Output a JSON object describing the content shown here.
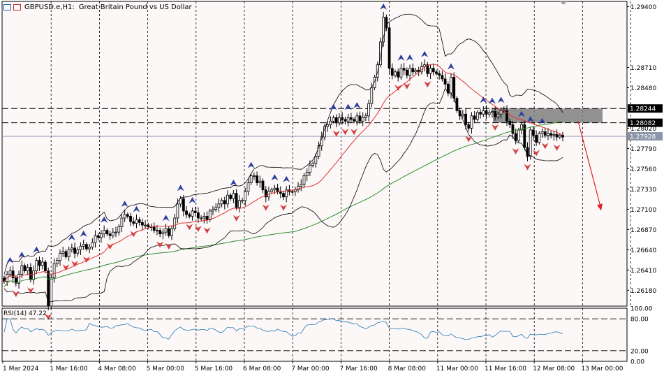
{
  "header": {
    "symbol": "GBPUSD.e,H1:",
    "description": "Great Britain Pound vs US Dollar"
  },
  "colors": {
    "background": "#fdf8f8",
    "candle_up": "#000000",
    "candle_down": "#000000",
    "sma_red": "#e03030",
    "sma_green": "#2e8b2e",
    "bollinger": "#000000",
    "fractal_up": "#2a3f9d",
    "fractal_down": "#d24040",
    "rsi_line": "#1f77b4",
    "zone_fill": "#808080",
    "forecast_arrow": "#e02020"
  },
  "rsi": {
    "label": "RSI(14) 47.22",
    "ticks": [
      "100.00",
      "80.00",
      "20.00",
      "0.00"
    ]
  },
  "chart_data": {
    "type": "candlestick",
    "title": "GBPUSD.e,H1: Great Britain Pound vs US Dollar",
    "price_axis_ticks": [
      "1.29400",
      "1.28710",
      "1.28480",
      "1.28020",
      "1.27790",
      "1.27560",
      "1.27330",
      "1.27100",
      "1.26870",
      "1.26640",
      "1.26410",
      "1.26180"
    ],
    "price_axis_ticks_display": [
      "1.29400",
      "1.28710",
      "1.28480",
      "1.28020",
      "1.27790",
      "1.27560",
      "1.27330",
      "1.27100",
      "1.26870",
      "1.26640",
      "1.26410",
      "1.26180"
    ],
    "price_range": [
      1.26,
      1.2946
    ],
    "time_axis_labels": [
      "1 Mar 2024",
      "1 Mar 16:00",
      "4 Mar 08:00",
      "5 Mar 00:00",
      "5 Mar 16:00",
      "6 Mar 08:00",
      "7 Mar 00:00",
      "7 Mar 16:00",
      "8 Mar 08:00",
      "11 Mar 00:00",
      "11 Mar 16:00",
      "12 Mar 08:00",
      "13 Mar 00:00"
    ],
    "highlight_labels": [
      {
        "price": 1.28244,
        "label": "1.28244",
        "style": "dark"
      },
      {
        "price": 1.28082,
        "label": "1.28082",
        "style": "dark"
      },
      {
        "price": 1.27928,
        "label": "1.27928",
        "style": "grey"
      }
    ],
    "horizontal_levels": [
      1.28244,
      1.28082
    ],
    "current_price": 1.27928,
    "resistance_zone": [
      1.28082,
      1.28244
    ],
    "series_close": [
      1.2628,
      1.2636,
      1.264,
      1.2632,
      1.2626,
      1.2636,
      1.2646,
      1.264,
      1.2644,
      1.263,
      1.264,
      1.2652,
      1.2646,
      1.265,
      1.264,
      1.26,
      1.2632,
      1.2648,
      1.2652,
      1.266,
      1.2662,
      1.2656,
      1.2664,
      1.2666,
      1.266,
      1.2664,
      1.2668,
      1.267,
      1.2665,
      1.2667,
      1.2672,
      1.268,
      1.2678,
      1.2682,
      1.2686,
      1.2682,
      1.268,
      1.2684,
      1.2684,
      1.269,
      1.27,
      1.2704,
      1.2702,
      1.2696,
      1.2694,
      1.2698,
      1.2695,
      1.2692,
      1.2692,
      1.269,
      1.269,
      1.2686,
      1.2686,
      1.2682,
      1.2684,
      1.2688,
      1.268,
      1.2688,
      1.27,
      1.2716,
      1.2722,
      1.2708,
      1.2704,
      1.2702,
      1.2708,
      1.2706,
      1.27,
      1.27,
      1.2702,
      1.2698,
      1.2708,
      1.271,
      1.2712,
      1.2716,
      1.272,
      1.2716,
      1.2726,
      1.2722,
      1.2728,
      1.2712,
      1.272,
      1.272,
      1.273,
      1.274,
      1.2748,
      1.2748,
      1.274,
      1.2742,
      1.2732,
      1.2724,
      1.273,
      1.2732,
      1.2734,
      1.273,
      1.2728,
      1.2724,
      1.2732,
      1.273,
      1.273,
      1.2732,
      1.2736,
      1.2738,
      1.2748,
      1.2752,
      1.276,
      1.2762,
      1.277,
      1.2782,
      1.2792,
      1.2804,
      1.2806,
      1.281,
      1.2814,
      1.2808,
      1.2814,
      1.2812,
      1.281,
      1.2814,
      1.2812,
      1.281,
      1.2816,
      1.281,
      1.2814,
      1.2816,
      1.283,
      1.2848,
      1.286,
      1.2874,
      1.29,
      1.2928,
      1.2916,
      1.287,
      1.2862,
      1.2866,
      1.286,
      1.287,
      1.2868,
      1.2862,
      1.287,
      1.2866,
      1.2868,
      1.2866,
      1.2872,
      1.2874,
      1.2864,
      1.287,
      1.2866,
      1.2864,
      1.2862,
      1.2858,
      1.2852,
      1.2842,
      1.286,
      1.2836,
      1.2822,
      1.2816,
      1.2818,
      1.2806,
      1.2802,
      1.2816,
      1.2812,
      1.282,
      1.2818,
      1.2822,
      1.2818,
      1.282,
      1.2821,
      1.2815,
      1.2818,
      1.2822,
      1.2822,
      1.281,
      1.2806,
      1.2796,
      1.2788,
      1.28,
      1.2806,
      1.278,
      1.277,
      1.28,
      1.2794,
      1.2786,
      1.2796,
      1.2798,
      1.2794,
      1.2796,
      1.2794,
      1.2795,
      1.2792,
      1.2794,
      1.2792
    ],
    "sma_red_values_note": "shorter moving average (red)",
    "sma_green_values_note": "longer moving average (green)",
    "forecast": {
      "from_price": 1.281,
      "to_price": 1.271,
      "direction": "down"
    }
  }
}
